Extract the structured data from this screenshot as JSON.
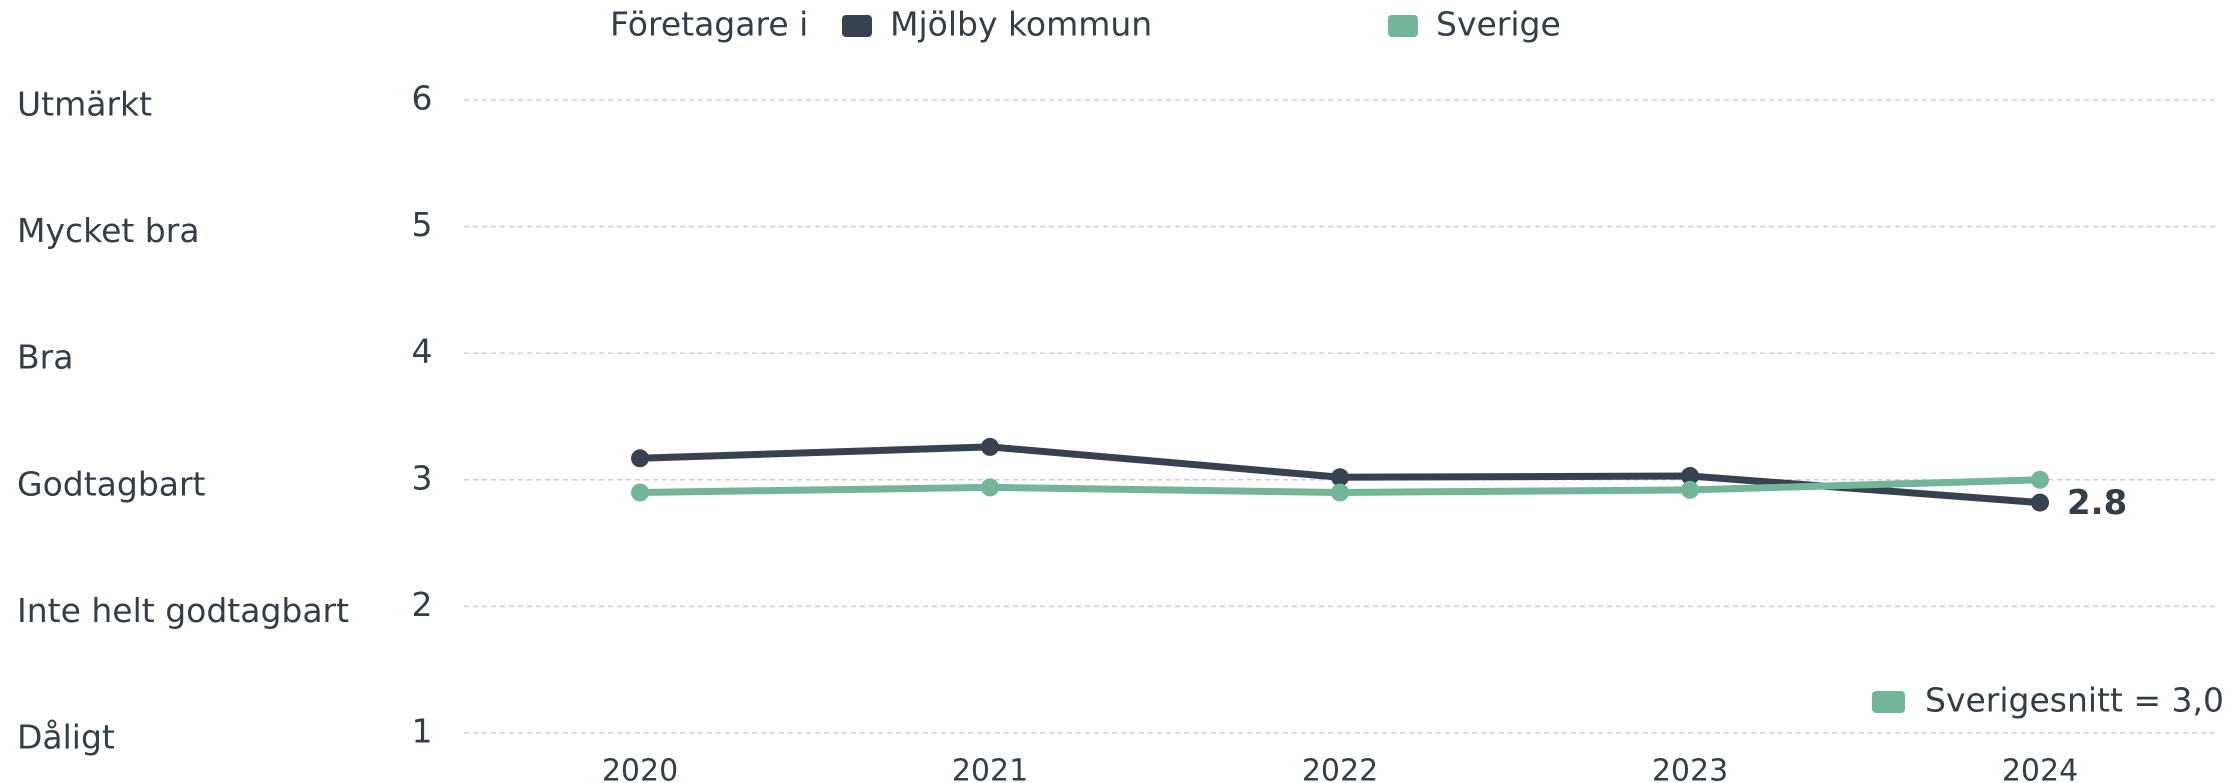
{
  "chart_data": {
    "type": "line",
    "legend_prefix": "Företagare i",
    "categories": [
      "2020",
      "2021",
      "2022",
      "2023",
      "2024"
    ],
    "series": [
      {
        "name": "Mjölby kommun",
        "color": "#36424f",
        "values": [
          3.17,
          3.26,
          3.02,
          3.03,
          2.82
        ],
        "value_labels": [
          null,
          null,
          null,
          null,
          "2.8"
        ]
      },
      {
        "name": "Sverige",
        "color": "#72b598",
        "values": [
          2.9,
          2.94,
          2.9,
          2.92,
          3.0
        ]
      }
    ],
    "ylim": [
      1,
      6
    ],
    "yticks": [
      1,
      2,
      3,
      4,
      5,
      6
    ],
    "ytick_descriptions": [
      "Dåligt",
      "Inte helt godtagbart",
      "Godtagbart",
      "Bra",
      "Mycket bra",
      "Utmärkt"
    ],
    "grid": true,
    "annotation": {
      "text": "Sverigesnitt = 3,0",
      "color": "#72b598"
    }
  }
}
